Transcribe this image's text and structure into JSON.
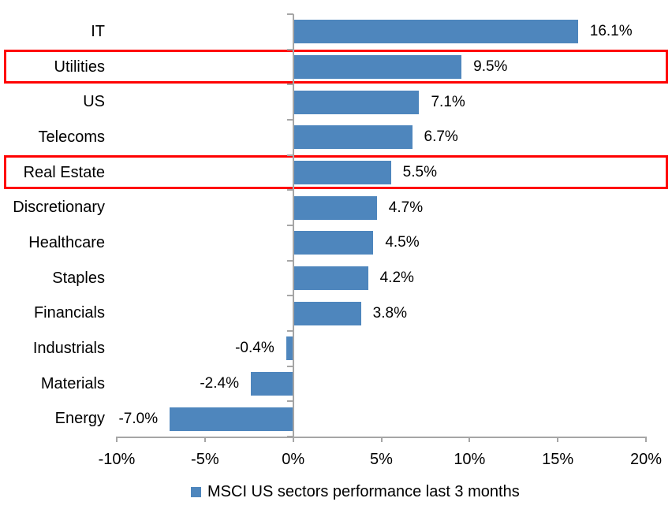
{
  "chart_data": {
    "type": "bar",
    "orientation": "horizontal",
    "title": "",
    "categories": [
      "IT",
      "Utilities",
      "US",
      "Telecoms",
      "Real Estate",
      "Discretionary",
      "Healthcare",
      "Staples",
      "Financials",
      "Industrials",
      "Materials",
      "Energy"
    ],
    "values": [
      16.1,
      9.5,
      7.1,
      6.7,
      5.5,
      4.7,
      4.5,
      4.2,
      3.8,
      -0.4,
      -2.4,
      -7.0
    ],
    "data_labels": [
      "16.1%",
      "9.5%",
      "7.1%",
      "6.7%",
      "5.5%",
      "4.7%",
      "4.5%",
      "4.2%",
      "3.8%",
      "-0.4%",
      "-2.4%",
      "-7.0%"
    ],
    "x_axis": {
      "tick_labels": [
        "-10%",
        "-5%",
        "0%",
        "5%",
        "10%",
        "15%",
        "20%"
      ],
      "tick_values": [
        -10,
        -5,
        0,
        5,
        10,
        15,
        20
      ],
      "range": [
        -10,
        20
      ],
      "unit": "%"
    },
    "grid": "off",
    "legend": {
      "label": "MSCI US sectors performance last 3 months",
      "position": "bottom",
      "marker": "square"
    },
    "highlighted_categories": [
      "Utilities",
      "Real Estate"
    ],
    "colors": {
      "bar": "#4E86BD",
      "highlight_box": "#FF0000",
      "axis": "#A6A6A6",
      "text": "#000000",
      "background": "#FFFFFF"
    }
  }
}
